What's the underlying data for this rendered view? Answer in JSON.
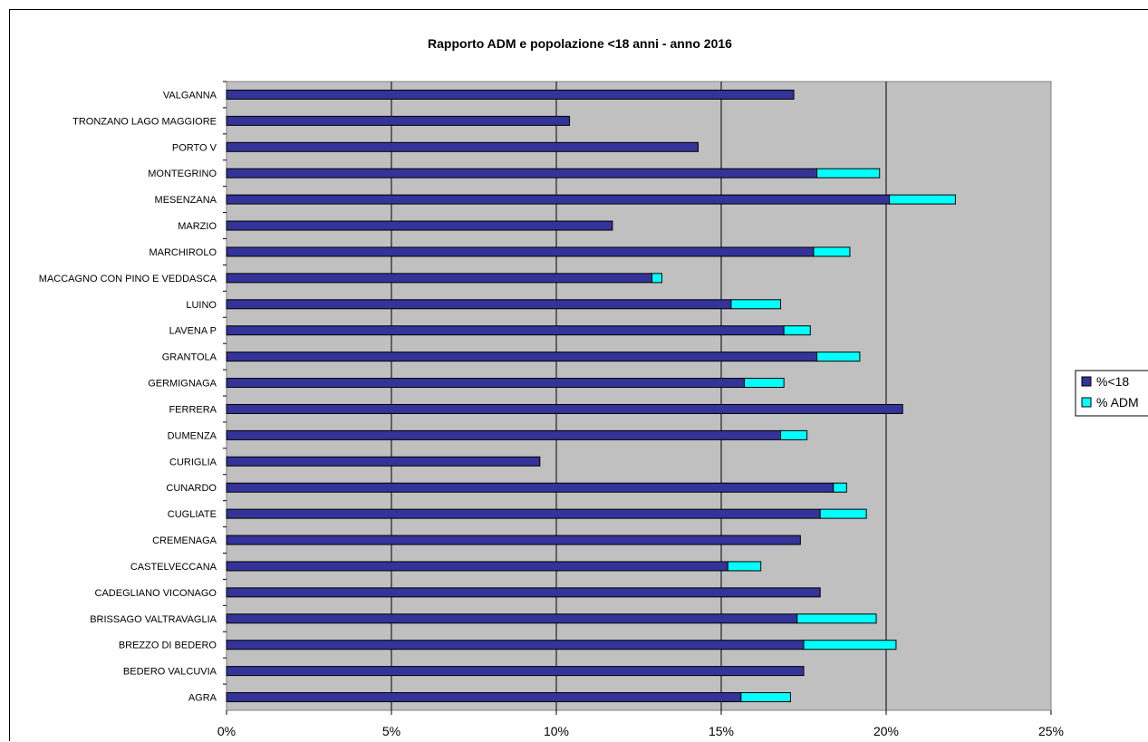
{
  "chart_data": {
    "type": "bar",
    "orientation": "horizontal",
    "stacked": true,
    "title": "Rapporto ADM e popolazione <18 anni - anno 2016",
    "xlabel": "",
    "ylabel": "",
    "xlim": [
      0,
      0.25
    ],
    "x_ticks": [
      "0%",
      "5%",
      "10%",
      "15%",
      "20%",
      "25%"
    ],
    "grid": true,
    "legend_position": "right",
    "categories": [
      "VALGANNA",
      "TRONZANO LAGO MAGGIORE",
      "PORTO V",
      "MONTEGRINO",
      "MESENZANA",
      "MARZIO",
      "MARCHIROLO",
      "MACCAGNO CON PINO E VEDDASCA",
      "LUINO",
      "LAVENA P",
      "GRANTOLA",
      "GERMIGNAGA",
      "FERRERA",
      "DUMENZA",
      "CURIGLIA",
      "CUNARDO",
      "CUGLIATE",
      "CREMENAGA",
      "CASTELVECCANA",
      "CADEGLIANO VICONAGO",
      "BRISSAGO VALTRAVAGLIA",
      "BREZZO DI BEDERO",
      "BEDERO VALCUVIA",
      "AGRA"
    ],
    "series": [
      {
        "name": "%<18",
        "color": "#333399",
        "values": [
          0.172,
          0.104,
          0.143,
          0.179,
          0.201,
          0.117,
          0.178,
          0.129,
          0.153,
          0.169,
          0.179,
          0.157,
          0.205,
          0.168,
          0.095,
          0.184,
          0.18,
          0.174,
          0.152,
          0.18,
          0.173,
          0.175,
          0.175,
          0.156
        ]
      },
      {
        "name": "% ADM",
        "color": "#00ffff",
        "values": [
          0,
          0,
          0,
          0.019,
          0.02,
          0,
          0.011,
          0.003,
          0.015,
          0.008,
          0.013,
          0.012,
          0,
          0.008,
          0,
          0.004,
          0.014,
          0,
          0.01,
          0,
          0.024,
          0.028,
          0,
          0.015
        ]
      }
    ],
    "plot_background": "#c0c0c0"
  }
}
